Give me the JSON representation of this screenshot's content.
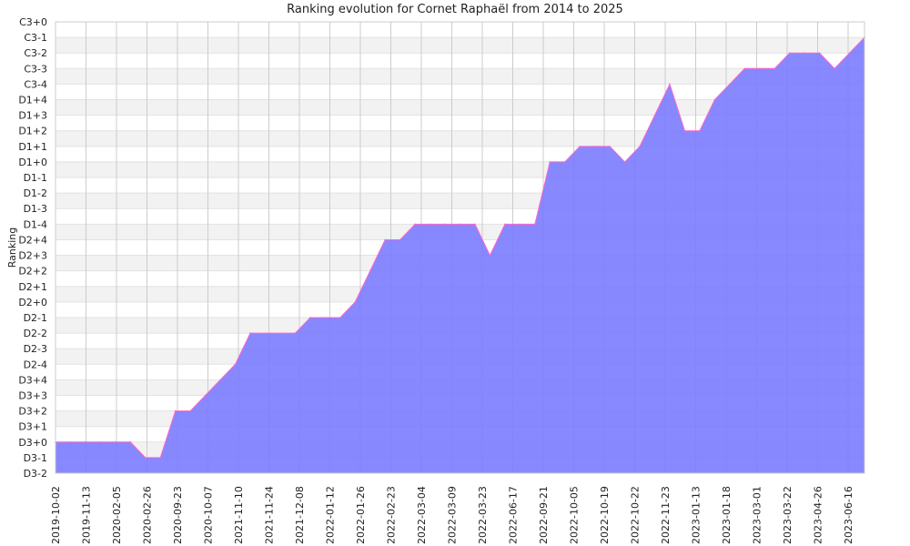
{
  "chart_data": {
    "type": "area",
    "title": "Ranking evolution for Cornet Raphaël from 2014 to 2025",
    "xlabel": "",
    "ylabel": "Ranking",
    "y_levels": [
      "D3-2",
      "D3-1",
      "D3+0",
      "D3+1",
      "D3+2",
      "D3+3",
      "D3+4",
      "D2-4",
      "D2-3",
      "D2-2",
      "D2-1",
      "D2+0",
      "D2+1",
      "D2+2",
      "D2+3",
      "D2+4",
      "D1-4",
      "D1-3",
      "D1-2",
      "D1-1",
      "D1+0",
      "D1+1",
      "D1+2",
      "D1+3",
      "D1+4",
      "C3-4",
      "C3-3",
      "C3-2",
      "C3-1",
      "C3+0"
    ],
    "x_tick_labels": [
      "2019-10-02",
      "2019-11-13",
      "2020-02-05",
      "2020-02-26",
      "2020-09-23",
      "2020-10-07",
      "2021-11-10",
      "2021-11-24",
      "2021-12-08",
      "2022-01-12",
      "2022-01-26",
      "2022-02-23",
      "2022-03-04",
      "2022-03-09",
      "2022-03-23",
      "2022-06-17",
      "2022-09-21",
      "2022-10-05",
      "2022-10-19",
      "2022-10-22",
      "2022-11-23",
      "2023-01-13",
      "2023-01-18",
      "2023-03-01",
      "2023-03-22",
      "2023-04-26",
      "2023-06-16"
    ],
    "series": [
      {
        "values": [
          "D3+0",
          "D3+0",
          "D3+0",
          "D3+0",
          "D3+0",
          "D3+0",
          "D3-1",
          "D3-1",
          "D3+2",
          "D3+2",
          "D3+3",
          "D3+4",
          "D2-4",
          "D2-2",
          "D2-2",
          "D2-2",
          "D2-2",
          "D2-1",
          "D2-1",
          "D2-1",
          "D2+0",
          "D2+2",
          "D2+4",
          "D2+4",
          "D1-4",
          "D1-4",
          "D1-4",
          "D1-4",
          "D1-4",
          "D2+3",
          "D1-4",
          "D1-4",
          "D1-4",
          "D1+0",
          "D1+0",
          "D1+1",
          "D1+1",
          "D1+1",
          "D1+0",
          "D1+1",
          "D1+3",
          "C3-4",
          "D1+2",
          "D1+2",
          "D1+4",
          "C3-4",
          "C3-3",
          "C3-3",
          "C3-3",
          "C3-2",
          "C3-2",
          "C3-2",
          "C3-3",
          "C3-2",
          "C3-1"
        ]
      }
    ],
    "fill_color": "#7b7bff",
    "line_color": "#ff66cc",
    "grid": true,
    "band_color": "#f2f2f2",
    "grid_color": "#cccccc"
  }
}
